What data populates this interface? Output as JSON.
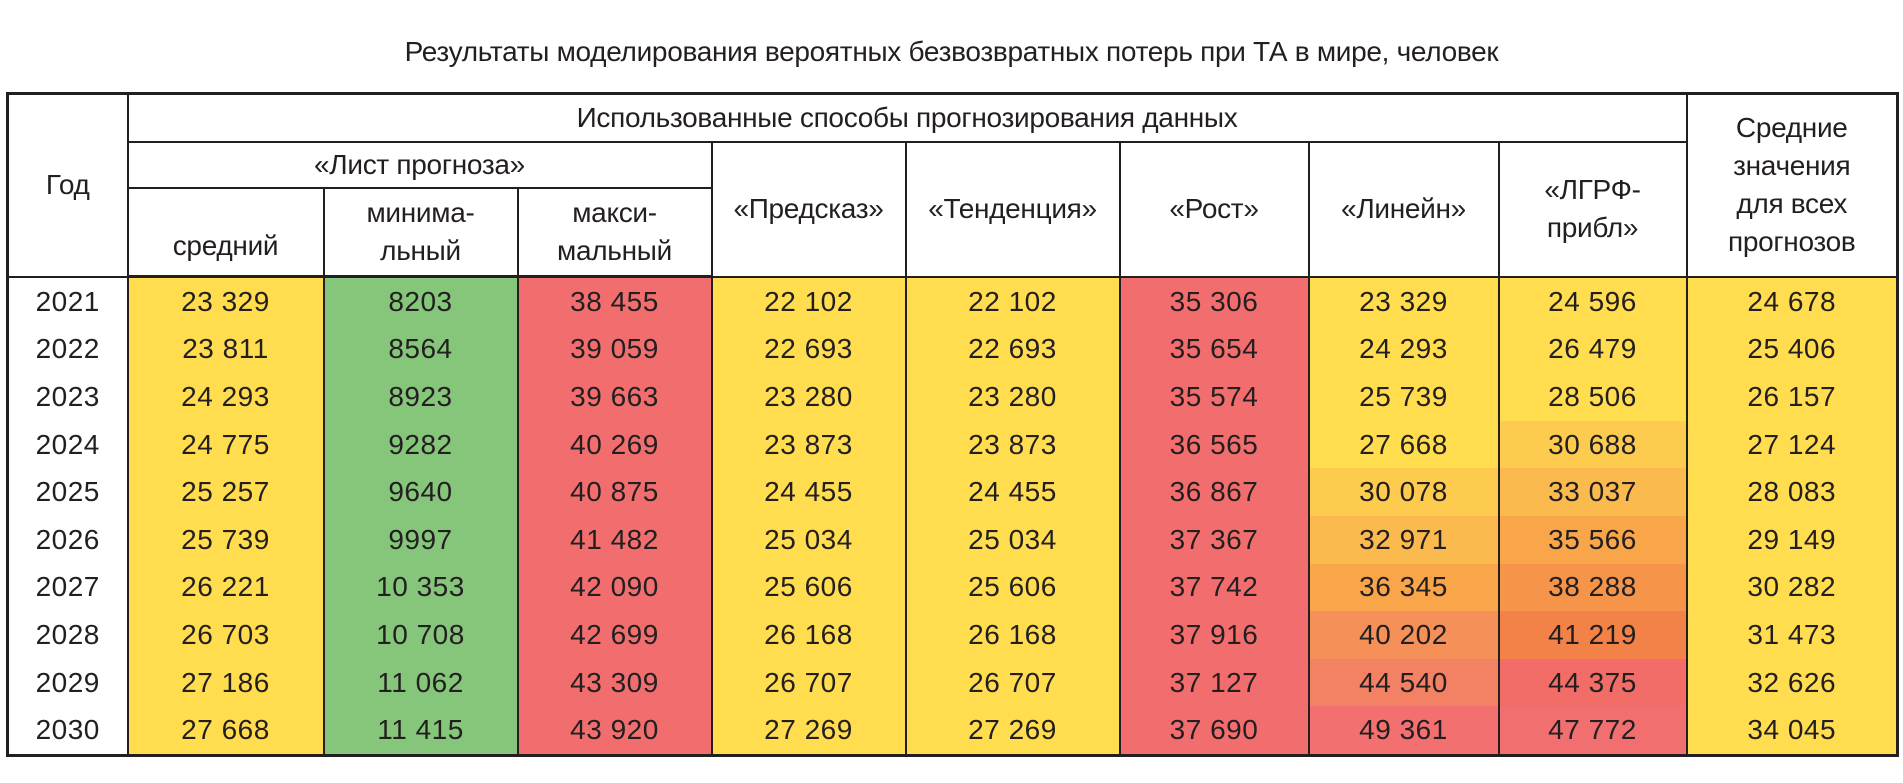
{
  "title": "Результаты моделирования вероятных безвозвратных потерь при ТА в мире, человек",
  "headers": {
    "year": "Год",
    "methods_group": "Использованные способы прогнозирования данных",
    "forecast_sheet": "«Лист прогноза»",
    "avg": "средний",
    "min_1": "минима-",
    "min_2": "льный",
    "max_1": "макси-",
    "max_2": "мальный",
    "predskaz": "«Предсказ»",
    "tendency": "«Тенденция»",
    "growth": "«Рост»",
    "linest": "«Линейн»",
    "logest_1": "«ЛГРФ-",
    "logest_2": "прибл»",
    "mean_1": "Средние",
    "mean_2": "значения",
    "mean_3": "для всех",
    "mean_4": "прогнозов"
  },
  "colors": {
    "yellow": "#FFDD4F",
    "green": "#86C67A",
    "red": "#F26E6E",
    "column_colors": [
      "#FFDD4F",
      "#86C67A",
      "#F26E6E",
      "#FFDD4F",
      "#FFDD4F",
      "#F26E6E",
      null,
      null,
      "#FFDD4F"
    ],
    "linest_rows": [
      "#FFDD4F",
      "#FFDD4F",
      "#FFDD4F",
      "#FFDD4F",
      "#FDCB4E",
      "#FBBA4D",
      "#F9A64B",
      "#F59158",
      "#F38163",
      "#F27070"
    ],
    "logest_rows": [
      "#FFDD4F",
      "#FFDD4F",
      "#FFDD4F",
      "#FDCB4E",
      "#FBBA4D",
      "#F9A64B",
      "#F6954A",
      "#F28247",
      "#F26D67",
      "#F26F6F"
    ]
  },
  "rows": [
    [
      "2021",
      "23 329",
      "8203",
      "38 455",
      "22 102",
      "22 102",
      "35 306",
      "23 329",
      "24 596",
      "24 678"
    ],
    [
      "2022",
      "23 811",
      "8564",
      "39 059",
      "22 693",
      "22 693",
      "35 654",
      "24 293",
      "26 479",
      "25 406"
    ],
    [
      "2023",
      "24 293",
      "8923",
      "39 663",
      "23 280",
      "23 280",
      "35 574",
      "25 739",
      "28 506",
      "26 157"
    ],
    [
      "2024",
      "24 775",
      "9282",
      "40 269",
      "23 873",
      "23 873",
      "36 565",
      "27 668",
      "30 688",
      "27 124"
    ],
    [
      "2025",
      "25 257",
      "9640",
      "40 875",
      "24 455",
      "24 455",
      "36 867",
      "30 078",
      "33 037",
      "28 083"
    ],
    [
      "2026",
      "25 739",
      "9997",
      "41 482",
      "25 034",
      "25 034",
      "37 367",
      "32 971",
      "35 566",
      "29 149"
    ],
    [
      "2027",
      "26 221",
      "10 353",
      "42 090",
      "25 606",
      "25 606",
      "37 742",
      "36 345",
      "38 288",
      "30 282"
    ],
    [
      "2028",
      "26 703",
      "10 708",
      "42 699",
      "26 168",
      "26 168",
      "37 916",
      "40 202",
      "41 219",
      "31 473"
    ],
    [
      "2029",
      "27 186",
      "11 062",
      "43 309",
      "26 707",
      "26 707",
      "37 127",
      "44 540",
      "44 375",
      "32 626"
    ],
    [
      "2030",
      "27 668",
      "11 415",
      "43 920",
      "27 269",
      "27 269",
      "37 690",
      "49 361",
      "47 772",
      "34 045"
    ]
  ]
}
